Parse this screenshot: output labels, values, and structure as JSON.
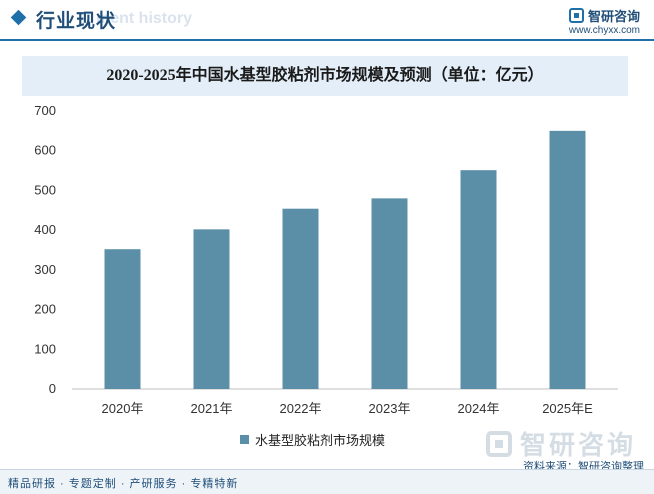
{
  "header": {
    "section_title": "行业现状",
    "section_ghost": "ment history",
    "brand_name": "智研咨询",
    "site_url": "www.chyxx.com"
  },
  "chart_data": {
    "type": "bar",
    "title": "2020-2025年中国水基型胶粘剂市场规模及预测（单位：亿元）",
    "categories": [
      "2020年",
      "2021年",
      "2022年",
      "2023年",
      "2024年",
      "2025年E"
    ],
    "series": [
      {
        "name": "水基型胶粘剂市场规模",
        "values": [
          352,
          402,
          454,
          480,
          551,
          650
        ]
      }
    ],
    "ylim": [
      0,
      700
    ],
    "yticks": [
      0,
      100,
      200,
      300,
      400,
      500,
      600,
      700
    ],
    "grid": false,
    "legend": "bottom-center",
    "bar_color": "#5b8fa8"
  },
  "watermark": {
    "text": "智研咨询"
  },
  "source": "资料来源：智研咨询整理",
  "footer": "精品研报 · 专题定制 · 产研服务 · 专精特新"
}
